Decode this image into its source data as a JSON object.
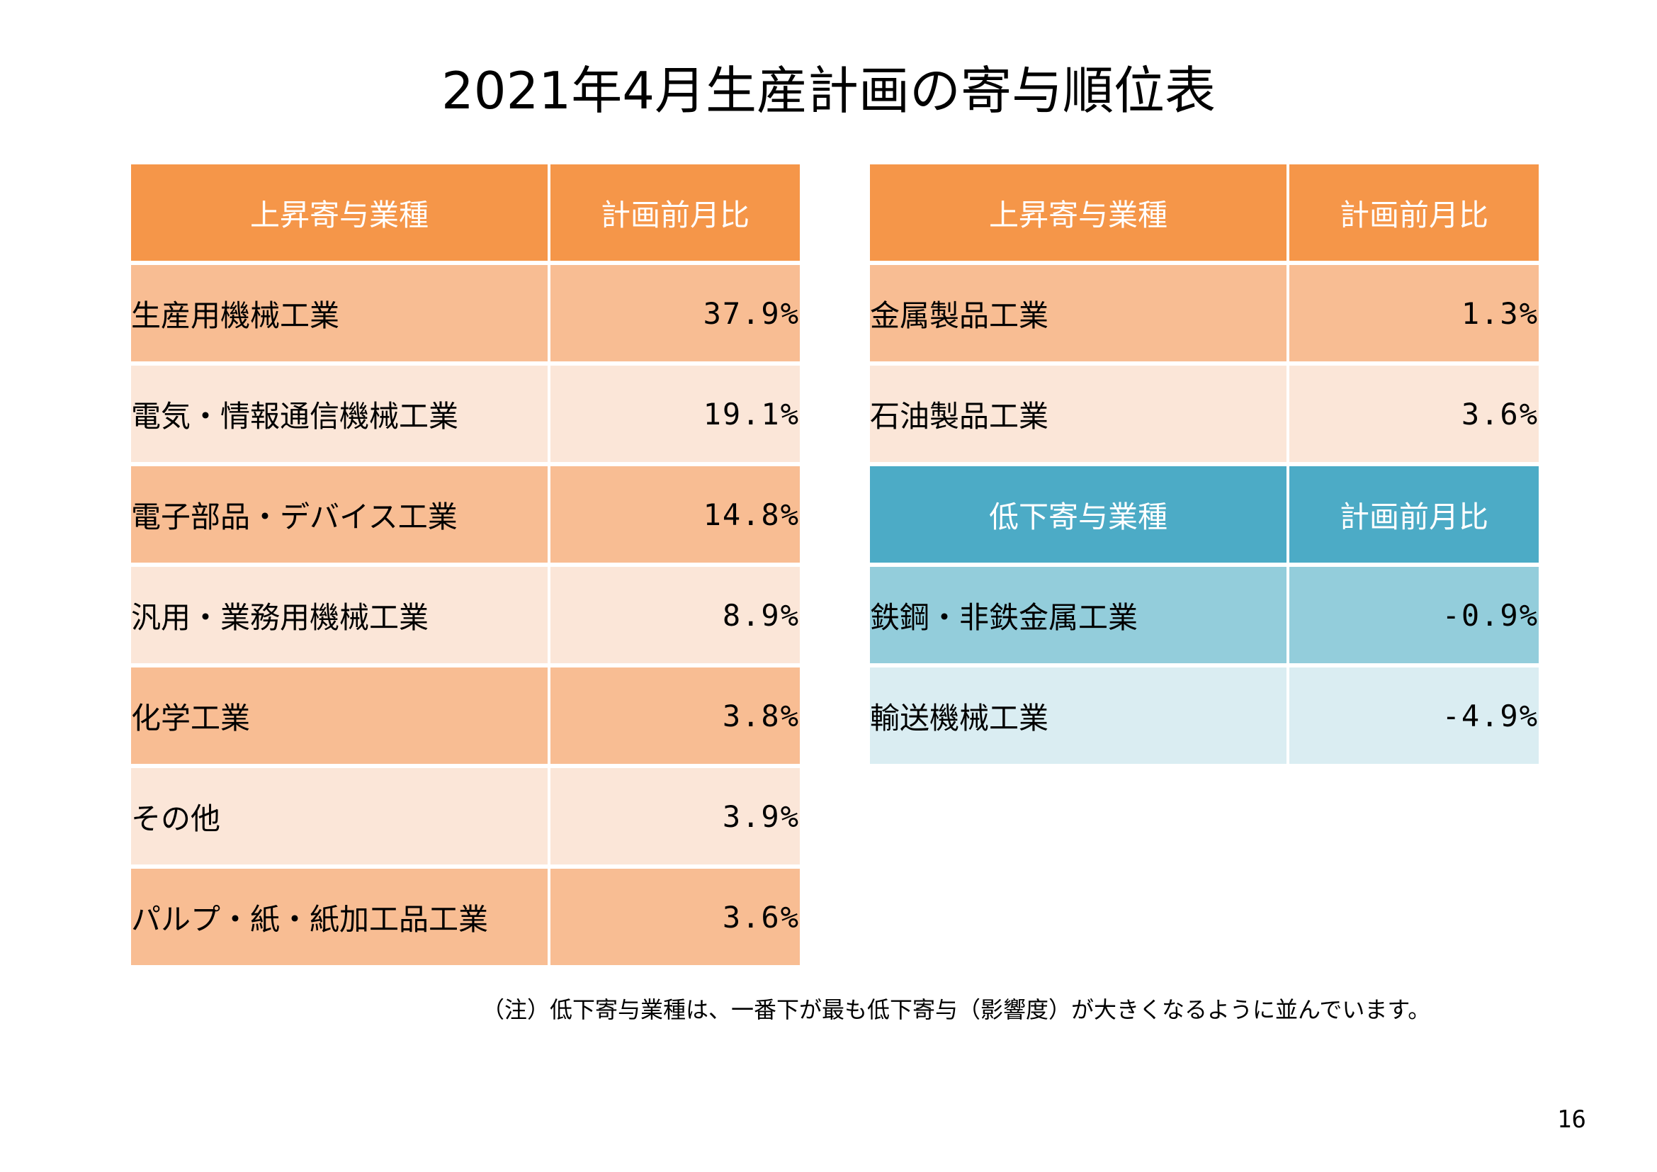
{
  "title": "2021年4月生産計画の寄与順位表",
  "left_table": {
    "header": {
      "name": "上昇寄与業種",
      "value": "計画前月比"
    },
    "rows": [
      {
        "name": "生産用機械工業",
        "value": "37.9%"
      },
      {
        "name": "電気・情報通信機械工業",
        "value": "19.1%"
      },
      {
        "name": "電子部品・デバイス工業",
        "value": "14.8%"
      },
      {
        "name": "汎用・業務用機械工業",
        "value": "8.9%"
      },
      {
        "name": "化学工業",
        "value": "3.8%"
      },
      {
        "name": "その他",
        "value": "3.9%"
      },
      {
        "name": "パルプ・紙・紙加工品工業",
        "value": "3.6%"
      }
    ]
  },
  "right_table": {
    "rise_header": {
      "name": "上昇寄与業種",
      "value": "計画前月比"
    },
    "rise_rows": [
      {
        "name": "金属製品工業",
        "value": "1.3%"
      },
      {
        "name": "石油製品工業",
        "value": "3.6%"
      }
    ],
    "fall_header": {
      "name": "低下寄与業種",
      "value": "計画前月比"
    },
    "fall_rows": [
      {
        "name": "鉄鋼・非鉄金属工業",
        "value": "-0.9%"
      },
      {
        "name": "輸送機械工業",
        "value": "-4.9%"
      }
    ]
  },
  "note": "（注）低下寄与業種は、一番下が最も低下寄与（影響度）が大きくなるように並んでいます。",
  "page_number": "16",
  "colors": {
    "orange_header": "#f59649",
    "orange_dark": "#f8bd93",
    "orange_light": "#fbe6d8",
    "blue_header": "#4cabc6",
    "blue_dark": "#93cddb",
    "blue_light": "#daedf2"
  }
}
